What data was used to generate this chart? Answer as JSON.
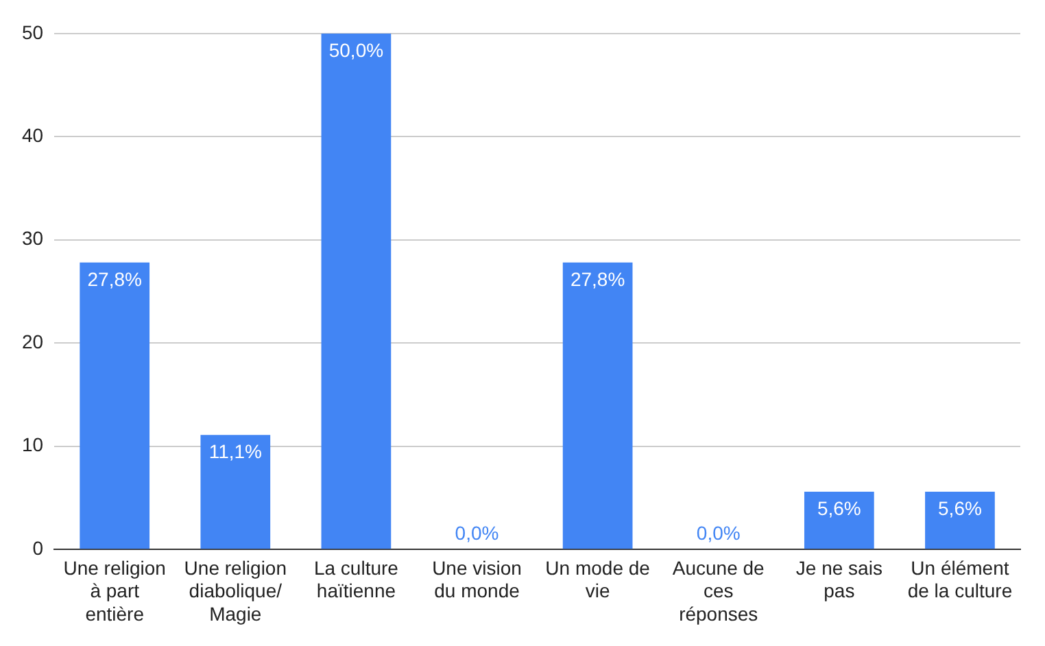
{
  "chart_data": {
    "type": "bar",
    "categories": [
      "Une religion à part entière",
      "Une religion diabolique/ Magie",
      "La culture haïtienne",
      "Une vision du monde",
      "Un mode de vie",
      "Aucune de ces réponses",
      "Je ne sais pas",
      "Un élément de la culture"
    ],
    "values": [
      27.8,
      11.1,
      50,
      0,
      27.8,
      0,
      5.6,
      5.6
    ],
    "value_labels": [
      "27,8%",
      "11,1%",
      "50,0%",
      "0,0%",
      "27,8%",
      "0,0%",
      "5,6%",
      "5,6%"
    ],
    "color": "#4285f4",
    "ylim": [
      0,
      50
    ],
    "yticks": [
      0,
      10,
      20,
      30,
      40,
      50
    ],
    "grid": "y"
  }
}
